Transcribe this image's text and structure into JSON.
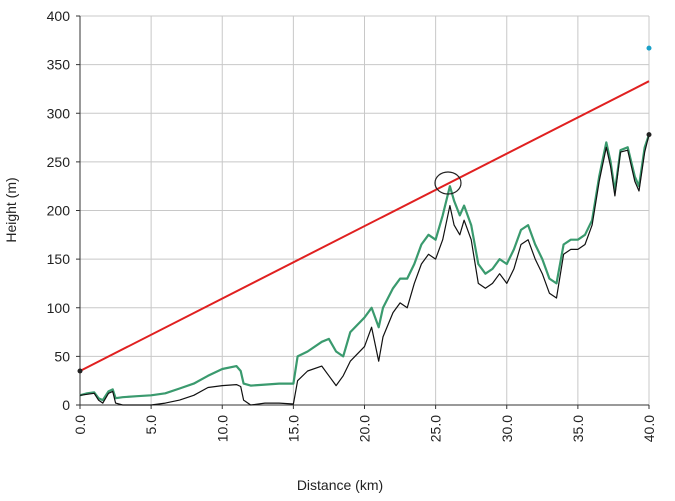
{
  "chart_data": {
    "type": "line",
    "xlabel": "Distance (km)",
    "ylabel": "Height (m)",
    "xlim": [
      0,
      40
    ],
    "ylim": [
      0,
      400
    ],
    "xticks": [
      {
        "value": 0,
        "label": "0.0"
      },
      {
        "value": 5,
        "label": "5.0"
      },
      {
        "value": 10,
        "label": "10.0"
      },
      {
        "value": 15,
        "label": "15.0"
      },
      {
        "value": 20,
        "label": "20.0"
      },
      {
        "value": 25,
        "label": "25.0"
      },
      {
        "value": 30,
        "label": "30.0"
      },
      {
        "value": 35,
        "label": "35.0"
      },
      {
        "value": 40,
        "label": "40.0"
      }
    ],
    "yticks": [
      0,
      50,
      100,
      150,
      200,
      250,
      300,
      350,
      400
    ],
    "grid": true,
    "series": [
      {
        "color": "#3a9a6e",
        "style": "line",
        "x": [
          0,
          0.5,
          1,
          1.3,
          1.6,
          2,
          2.3,
          2.5,
          3,
          4,
          5,
          6,
          7,
          8,
          9,
          10,
          11,
          11.3,
          11.5,
          12,
          13,
          14,
          15,
          15.3,
          16,
          17,
          17.5,
          18,
          18.5,
          19,
          20,
          20.5,
          21,
          21.3,
          22,
          22.5,
          23,
          23.5,
          24,
          24.5,
          25,
          25.5,
          26,
          26.3,
          26.7,
          27,
          27.5,
          28,
          28.5,
          29,
          29.5,
          30,
          30.5,
          31,
          31.5,
          32,
          32.5,
          33,
          33.5,
          34,
          34.5,
          35,
          35.5,
          36,
          36.5,
          37,
          37.3,
          37.6,
          38,
          38.5,
          39,
          39.3,
          39.7,
          40
        ],
        "values": [
          10,
          12,
          13,
          7,
          5,
          14,
          16,
          7,
          8,
          9,
          10,
          12,
          17,
          22,
          30,
          37,
          40,
          35,
          22,
          20,
          21,
          22,
          22,
          50,
          55,
          65,
          68,
          55,
          50,
          75,
          90,
          100,
          80,
          100,
          120,
          130,
          130,
          145,
          165,
          175,
          170,
          195,
          225,
          210,
          195,
          205,
          185,
          145,
          135,
          140,
          150,
          145,
          160,
          180,
          185,
          165,
          150,
          130,
          125,
          165,
          170,
          170,
          175,
          190,
          235,
          270,
          250,
          220,
          262,
          265,
          235,
          225,
          265,
          278
        ]
      },
      {
        "color": "#111111",
        "style": "line",
        "x": [
          0,
          0.5,
          1,
          1.3,
          1.6,
          2,
          2.3,
          2.5,
          3,
          4,
          5,
          6,
          7,
          8,
          9,
          10,
          11,
          11.3,
          11.5,
          12,
          13,
          14,
          15,
          15.3,
          16,
          17,
          17.5,
          18,
          18.5,
          19,
          20,
          20.5,
          21,
          21.3,
          22,
          22.5,
          23,
          23.5,
          24,
          24.5,
          25,
          25.5,
          26,
          26.3,
          26.7,
          27,
          27.5,
          28,
          28.5,
          29,
          29.5,
          30,
          30.5,
          31,
          31.5,
          32,
          32.5,
          33,
          33.5,
          34,
          34.5,
          35,
          35.5,
          36,
          36.5,
          37,
          37.3,
          37.6,
          38,
          38.5,
          39,
          39.3,
          39.7,
          40
        ],
        "values": [
          10,
          11,
          12,
          5,
          2,
          12,
          14,
          2,
          0,
          0,
          0,
          2,
          5,
          10,
          18,
          20,
          21,
          19,
          5,
          0,
          2,
          2,
          1,
          25,
          35,
          40,
          30,
          20,
          30,
          45,
          60,
          80,
          45,
          70,
          95,
          105,
          100,
          125,
          145,
          155,
          150,
          170,
          205,
          185,
          175,
          190,
          170,
          125,
          120,
          125,
          135,
          125,
          140,
          165,
          170,
          150,
          135,
          115,
          110,
          155,
          160,
          160,
          165,
          185,
          230,
          265,
          245,
          215,
          260,
          262,
          230,
          220,
          260,
          278
        ]
      },
      {
        "color": "#e02020",
        "style": "line",
        "x": [
          0,
          40
        ],
        "values": [
          35,
          333
        ]
      },
      {
        "color": "#222222",
        "style": "points",
        "x": [
          0,
          40
        ],
        "values": [
          35,
          278
        ]
      },
      {
        "color": "#1aa0c8",
        "style": "points",
        "x": [
          40
        ],
        "values": [
          367
        ]
      }
    ]
  }
}
